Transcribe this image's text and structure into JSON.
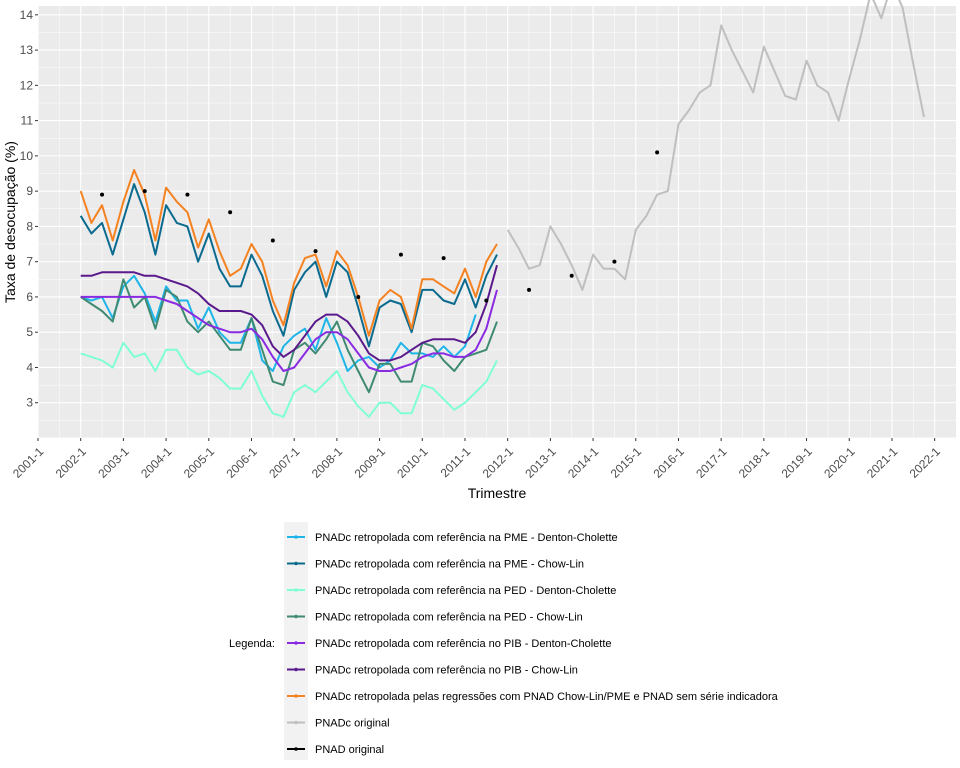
{
  "chart_data": {
    "type": "line",
    "title": "",
    "xlabel": "Trimestre",
    "ylabel": "Taxa de desocupação (%)",
    "xlim": [
      2001.0,
      2022.5
    ],
    "ylim": [
      2.0,
      14.25
    ],
    "yticks": [
      3,
      4,
      5,
      6,
      7,
      8,
      9,
      10,
      11,
      12,
      13,
      14
    ],
    "xticks": [
      "2001-1",
      "2002-1",
      "2003-1",
      "2004-1",
      "2005-1",
      "2006-1",
      "2007-1",
      "2008-1",
      "2009-1",
      "2010-1",
      "2011-1",
      "2012-1",
      "2013-1",
      "2014-1",
      "2015-1",
      "2016-1",
      "2017-1",
      "2018-1",
      "2019-1",
      "2020-1",
      "2021-1",
      "2022-1"
    ],
    "grid": true,
    "legend": {
      "title": "Legenda:",
      "placement": "bottom"
    },
    "series": [
      {
        "name": "PNADc retropolada com referência na PME - Denton-Cholette",
        "color": "#1fb5e8",
        "x_start": 2002.0,
        "values": [
          6.0,
          5.9,
          6.0,
          5.4,
          6.3,
          6.6,
          6.1,
          5.3,
          6.3,
          5.9,
          5.9,
          5.1,
          5.7,
          5.0,
          4.7,
          4.7,
          5.4,
          4.2,
          3.9,
          4.6,
          4.9,
          5.1,
          4.5,
          5.4,
          4.7,
          3.9,
          4.2,
          4.3,
          4.0,
          4.2,
          4.7,
          4.4,
          4.4,
          4.3,
          4.6,
          4.3,
          4.6,
          5.5
        ]
      },
      {
        "name": "PNADc retropolada com referência na PME - Chow-Lin",
        "color": "#0b6b8f",
        "x_start": 2002.0,
        "values": [
          8.3,
          7.8,
          8.1,
          7.2,
          8.2,
          9.2,
          8.4,
          7.2,
          8.6,
          8.1,
          8.0,
          7.0,
          7.8,
          6.8,
          6.3,
          6.3,
          7.2,
          6.6,
          5.6,
          4.9,
          6.2,
          6.7,
          7.0,
          6.0,
          7.0,
          6.7,
          5.7,
          4.6,
          5.7,
          5.9,
          5.8,
          5.0,
          6.2,
          6.2,
          5.9,
          5.8,
          6.5,
          5.7,
          6.6,
          7.2
        ]
      },
      {
        "name": "PNADc retropolada com referência na PED - Denton-Cholette",
        "color": "#7fffd4",
        "x_start": 2002.0,
        "values": [
          4.4,
          4.3,
          4.2,
          4.0,
          4.7,
          4.3,
          4.4,
          3.9,
          4.5,
          4.5,
          4.0,
          3.8,
          3.9,
          3.7,
          3.4,
          3.4,
          3.9,
          3.2,
          2.7,
          2.6,
          3.3,
          3.5,
          3.3,
          3.6,
          3.9,
          3.3,
          2.9,
          2.6,
          3.0,
          3.0,
          2.7,
          2.7,
          3.5,
          3.4,
          3.1,
          2.8,
          3.0,
          3.3,
          3.6,
          4.2
        ]
      },
      {
        "name": "PNADc retropolada com referência na PED - Chow-Lin",
        "color": "#3f8a72",
        "x_start": 2002.0,
        "values": [
          6.0,
          5.8,
          5.6,
          5.3,
          6.5,
          5.7,
          6.0,
          5.1,
          6.2,
          6.0,
          5.3,
          5.0,
          5.3,
          4.9,
          4.5,
          4.5,
          5.4,
          4.5,
          3.6,
          3.5,
          4.5,
          4.7,
          4.4,
          4.8,
          5.3,
          4.5,
          3.9,
          3.3,
          4.1,
          4.1,
          3.6,
          3.6,
          4.7,
          4.6,
          4.2,
          3.9,
          4.3,
          4.4,
          4.5,
          5.3
        ]
      },
      {
        "name": "PNADc retropolada com referência no PIB - Denton-Cholette",
        "color": "#8a2be2",
        "x_start": 2002.0,
        "values": [
          6.0,
          6.0,
          6.0,
          6.0,
          6.0,
          6.0,
          6.0,
          6.0,
          5.9,
          5.8,
          5.6,
          5.4,
          5.2,
          5.1,
          5.0,
          5.0,
          5.1,
          4.8,
          4.3,
          3.9,
          4.0,
          4.4,
          4.8,
          5.0,
          5.0,
          4.8,
          4.4,
          4.0,
          3.9,
          3.9,
          4.0,
          4.1,
          4.3,
          4.4,
          4.4,
          4.3,
          4.3,
          4.5,
          5.1,
          6.2
        ]
      },
      {
        "name": "PNADc retropolada com referência no PIB - Chow-Lin",
        "color": "#5b1a8c",
        "x_start": 2002.0,
        "values": [
          6.6,
          6.6,
          6.7,
          6.7,
          6.7,
          6.7,
          6.6,
          6.6,
          6.5,
          6.4,
          6.3,
          6.1,
          5.8,
          5.6,
          5.6,
          5.6,
          5.5,
          5.2,
          4.6,
          4.3,
          4.5,
          4.9,
          5.3,
          5.5,
          5.5,
          5.3,
          4.9,
          4.4,
          4.2,
          4.2,
          4.3,
          4.5,
          4.7,
          4.8,
          4.8,
          4.8,
          4.7,
          5.0,
          5.8,
          6.9
        ]
      },
      {
        "name": "PNADc retropolada pelas regressões com PNAD Chow-Lin/PME e PNAD sem série indicadora",
        "color": "#f58220",
        "x_start": 2002.0,
        "values": [
          9.0,
          8.1,
          8.6,
          7.6,
          8.7,
          9.6,
          8.9,
          7.6,
          9.1,
          8.7,
          8.4,
          7.4,
          8.2,
          7.3,
          6.6,
          6.8,
          7.5,
          7.0,
          5.9,
          5.2,
          6.4,
          7.1,
          7.2,
          6.3,
          7.3,
          6.9,
          6.0,
          4.9,
          5.9,
          6.2,
          6.0,
          5.1,
          6.5,
          6.5,
          6.3,
          6.1,
          6.8,
          6.0,
          7.0,
          7.5
        ]
      },
      {
        "name": "PNADc original",
        "color": "#bfbfbf",
        "x_start": 2012.0,
        "values": [
          7.9,
          7.4,
          6.8,
          6.9,
          8.0,
          7.5,
          6.9,
          6.2,
          7.2,
          6.8,
          6.8,
          6.5,
          7.9,
          8.3,
          8.9,
          9.0,
          10.9,
          11.3,
          11.8,
          12.0,
          13.7,
          13.0,
          12.4,
          11.8,
          13.1,
          12.4,
          11.7,
          11.6,
          12.7,
          12.0,
          11.8,
          11.0,
          12.2,
          13.3,
          14.6,
          13.9,
          14.9,
          14.2,
          12.6,
          11.1
        ]
      }
    ],
    "pnad_original": {
      "name": "PNAD original",
      "color": "#000000",
      "x": [
        2002.5,
        2003.5,
        2004.5,
        2005.5,
        2006.5,
        2007.5,
        2008.5,
        2009.5,
        2010.5,
        2011.5,
        2012.5,
        2013.5,
        2014.5,
        2015.5
      ],
      "values": [
        8.9,
        9.0,
        8.9,
        8.4,
        7.6,
        7.3,
        6.0,
        7.2,
        7.1,
        5.9,
        6.2,
        6.6,
        7.0,
        10.1
      ]
    }
  }
}
